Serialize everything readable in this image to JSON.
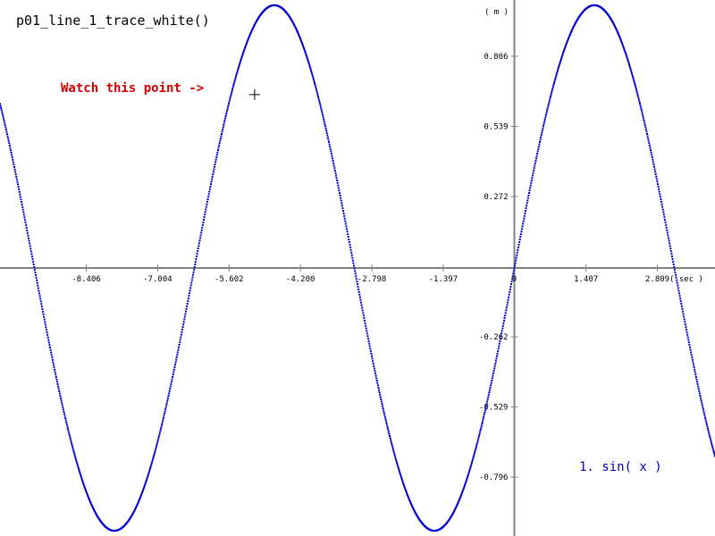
{
  "chart_data": {
    "type": "line",
    "title": "p01_line_1_trace_white()",
    "xlabel": "( sec )",
    "ylabel": "( m )",
    "x_ticks": [
      -8.406,
      -7.004,
      -5.602,
      -4.2,
      -2.798,
      -1.397,
      0,
      1.407,
      2.809
    ],
    "x_tick_labels": [
      "-8.406",
      "-7.004",
      "-5.602",
      "-4.200",
      "-2.798",
      "-1.397",
      "0",
      "1.407",
      "2.809"
    ],
    "y_ticks": [
      0.806,
      0.539,
      0.272,
      -0.262,
      -0.529,
      -0.796
    ],
    "y_tick_labels": [
      "0.806",
      "0.539",
      "0.272",
      "-0.262",
      "-0.529",
      "-0.796"
    ],
    "xlim": [
      -10.1,
      3.94
    ],
    "ylim": [
      -1.02,
      1.02
    ],
    "grid": false,
    "series": [
      {
        "name": "1. sin( x )",
        "function": "sin(x)",
        "color": "#0000cc",
        "x_range": [
          -10.1,
          3.94
        ]
      }
    ],
    "annotation": {
      "text": "Watch this point ->",
      "x": -5.1,
      "y": 0.66,
      "color": "#d40000"
    }
  }
}
